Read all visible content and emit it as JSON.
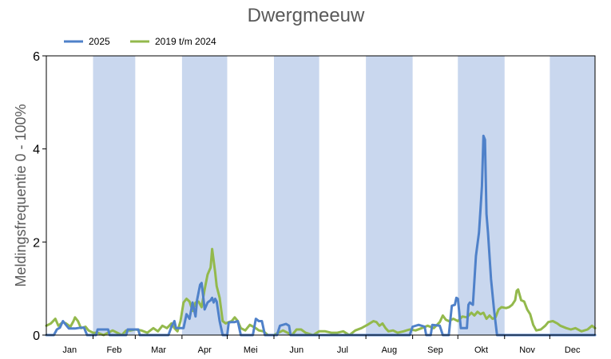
{
  "chart_data": {
    "type": "line",
    "title": "Dwergmeeuw",
    "ylabel": "Meldingsfrequentie 0 - 100%",
    "xlabel": "",
    "ylim": [
      0,
      6
    ],
    "yticks": [
      0,
      2,
      4,
      6
    ],
    "xlim": [
      1,
      365
    ],
    "months": [
      "Jan",
      "Feb",
      "Mar",
      "Apr",
      "Mei",
      "Jun",
      "Jul",
      "Aug",
      "Sep",
      "Okt",
      "Nov",
      "Dec"
    ],
    "month_shading": "alternating months shaded light blue, starting Feb",
    "legend_position": "top-left",
    "grid": false,
    "colors": {
      "band": "#c9d7ee",
      "series_2025": "#4f81c9",
      "series_2019_2024": "#93b94c"
    },
    "series": [
      {
        "name": "2025",
        "color": "#4f81c9",
        "points": [
          [
            1,
            0.0
          ],
          [
            6,
            0.0
          ],
          [
            8,
            0.12
          ],
          [
            10,
            0.16
          ],
          [
            12,
            0.3
          ],
          [
            14,
            0.22
          ],
          [
            16,
            0.14
          ],
          [
            20,
            0.14
          ],
          [
            24,
            0.16
          ],
          [
            26,
            0.16
          ],
          [
            28,
            0.0
          ],
          [
            34,
            0.0
          ],
          [
            35,
            0.12
          ],
          [
            42,
            0.12
          ],
          [
            43,
            0.0
          ],
          [
            54,
            0.0
          ],
          [
            55,
            0.12
          ],
          [
            62,
            0.12
          ],
          [
            63,
            0.0
          ],
          [
            82,
            0.0
          ],
          [
            84,
            0.18
          ],
          [
            86,
            0.3
          ],
          [
            87,
            0.15
          ],
          [
            92,
            0.15
          ],
          [
            94,
            0.45
          ],
          [
            96,
            0.35
          ],
          [
            98,
            0.7
          ],
          [
            100,
            0.4
          ],
          [
            101,
            0.75
          ],
          [
            103,
            1.08
          ],
          [
            104,
            1.12
          ],
          [
            105,
            0.85
          ],
          [
            106,
            0.55
          ],
          [
            108,
            0.7
          ],
          [
            110,
            0.75
          ],
          [
            111,
            0.8
          ],
          [
            112,
            0.7
          ],
          [
            113,
            0.78
          ],
          [
            114,
            0.72
          ],
          [
            116,
            0.3
          ],
          [
            118,
            0.0
          ],
          [
            121,
            0.0
          ],
          [
            122,
            0.27
          ],
          [
            124,
            0.28
          ],
          [
            126,
            0.28
          ],
          [
            128,
            0.3
          ],
          [
            130,
            0.0
          ],
          [
            138,
            0.0
          ],
          [
            140,
            0.35
          ],
          [
            142,
            0.3
          ],
          [
            144,
            0.3
          ],
          [
            146,
            0.0
          ],
          [
            154,
            0.0
          ],
          [
            156,
            0.2
          ],
          [
            160,
            0.24
          ],
          [
            162,
            0.2
          ],
          [
            163,
            0.0
          ],
          [
            242,
            0.0
          ],
          [
            244,
            0.18
          ],
          [
            248,
            0.22
          ],
          [
            252,
            0.18
          ],
          [
            253,
            0.0
          ],
          [
            256,
            0.0
          ],
          [
            257,
            0.22
          ],
          [
            262,
            0.2
          ],
          [
            264,
            0.0
          ],
          [
            268,
            0.0
          ],
          [
            270,
            0.63
          ],
          [
            272,
            0.65
          ],
          [
            273,
            0.8
          ],
          [
            274,
            0.78
          ],
          [
            276,
            0.15
          ],
          [
            280,
            0.15
          ],
          [
            281,
            0.65
          ],
          [
            282,
            0.7
          ],
          [
            284,
            0.65
          ],
          [
            286,
            1.7
          ],
          [
            288,
            2.2
          ],
          [
            289,
            2.7
          ],
          [
            290,
            3.2
          ],
          [
            291,
            4.28
          ],
          [
            292,
            4.2
          ],
          [
            293,
            2.6
          ],
          [
            294,
            2.2
          ],
          [
            296,
            1.2
          ],
          [
            298,
            0.55
          ],
          [
            300,
            0.0
          ],
          [
            365,
            0.0
          ]
        ]
      },
      {
        "name": "2019 t/m 2024",
        "color": "#93b94c",
        "points": [
          [
            1,
            0.2
          ],
          [
            4,
            0.25
          ],
          [
            7,
            0.35
          ],
          [
            9,
            0.2
          ],
          [
            12,
            0.28
          ],
          [
            14,
            0.25
          ],
          [
            17,
            0.18
          ],
          [
            19,
            0.3
          ],
          [
            20,
            0.38
          ],
          [
            22,
            0.3
          ],
          [
            24,
            0.15
          ],
          [
            27,
            0.18
          ],
          [
            29,
            0.1
          ],
          [
            32,
            0.05
          ],
          [
            35,
            0.05
          ],
          [
            39,
            0.0
          ],
          [
            42,
            0.05
          ],
          [
            45,
            0.1
          ],
          [
            48,
            0.05
          ],
          [
            51,
            0.0
          ],
          [
            54,
            0.1
          ],
          [
            57,
            0.1
          ],
          [
            60,
            0.12
          ],
          [
            64,
            0.1
          ],
          [
            68,
            0.05
          ],
          [
            72,
            0.15
          ],
          [
            75,
            0.08
          ],
          [
            78,
            0.2
          ],
          [
            81,
            0.15
          ],
          [
            84,
            0.25
          ],
          [
            86,
            0.15
          ],
          [
            88,
            0.08
          ],
          [
            90,
            0.3
          ],
          [
            92,
            0.7
          ],
          [
            94,
            0.78
          ],
          [
            96,
            0.72
          ],
          [
            98,
            0.52
          ],
          [
            100,
            0.7
          ],
          [
            102,
            0.72
          ],
          [
            104,
            0.6
          ],
          [
            106,
            0.98
          ],
          [
            108,
            1.3
          ],
          [
            110,
            1.45
          ],
          [
            111,
            1.85
          ],
          [
            112,
            1.6
          ],
          [
            113,
            1.35
          ],
          [
            114,
            1.05
          ],
          [
            116,
            0.8
          ],
          [
            118,
            0.3
          ],
          [
            120,
            0.25
          ],
          [
            122,
            0.28
          ],
          [
            124,
            0.3
          ],
          [
            126,
            0.38
          ],
          [
            128,
            0.3
          ],
          [
            130,
            0.15
          ],
          [
            133,
            0.1
          ],
          [
            136,
            0.22
          ],
          [
            140,
            0.15
          ],
          [
            142,
            0.1
          ],
          [
            145,
            0.08
          ],
          [
            148,
            0.0
          ],
          [
            152,
            0.0
          ],
          [
            155,
            0.05
          ],
          [
            158,
            0.1
          ],
          [
            161,
            0.05
          ],
          [
            164,
            0.0
          ],
          [
            167,
            0.12
          ],
          [
            170,
            0.12
          ],
          [
            173,
            0.05
          ],
          [
            178,
            0.0
          ],
          [
            182,
            0.08
          ],
          [
            186,
            0.08
          ],
          [
            190,
            0.05
          ],
          [
            194,
            0.05
          ],
          [
            198,
            0.08
          ],
          [
            202,
            0.0
          ],
          [
            206,
            0.1
          ],
          [
            210,
            0.15
          ],
          [
            214,
            0.22
          ],
          [
            218,
            0.3
          ],
          [
            220,
            0.28
          ],
          [
            222,
            0.2
          ],
          [
            224,
            0.25
          ],
          [
            226,
            0.15
          ],
          [
            228,
            0.08
          ],
          [
            231,
            0.1
          ],
          [
            234,
            0.05
          ],
          [
            238,
            0.08
          ],
          [
            242,
            0.12
          ],
          [
            246,
            0.1
          ],
          [
            250,
            0.15
          ],
          [
            254,
            0.2
          ],
          [
            258,
            0.15
          ],
          [
            262,
            0.28
          ],
          [
            264,
            0.42
          ],
          [
            266,
            0.33
          ],
          [
            268,
            0.3
          ],
          [
            271,
            0.35
          ],
          [
            274,
            0.3
          ],
          [
            277,
            0.4
          ],
          [
            280,
            0.38
          ],
          [
            283,
            0.48
          ],
          [
            285,
            0.42
          ],
          [
            287,
            0.5
          ],
          [
            289,
            0.45
          ],
          [
            291,
            0.48
          ],
          [
            293,
            0.35
          ],
          [
            295,
            0.42
          ],
          [
            297,
            0.35
          ],
          [
            299,
            0.38
          ],
          [
            301,
            0.55
          ],
          [
            303,
            0.6
          ],
          [
            306,
            0.58
          ],
          [
            308,
            0.6
          ],
          [
            310,
            0.65
          ],
          [
            312,
            0.75
          ],
          [
            313,
            0.95
          ],
          [
            314,
            0.98
          ],
          [
            316,
            0.75
          ],
          [
            318,
            0.72
          ],
          [
            320,
            0.55
          ],
          [
            322,
            0.45
          ],
          [
            324,
            0.22
          ],
          [
            326,
            0.1
          ],
          [
            329,
            0.12
          ],
          [
            332,
            0.2
          ],
          [
            334,
            0.28
          ],
          [
            337,
            0.3
          ],
          [
            340,
            0.25
          ],
          [
            342,
            0.2
          ],
          [
            346,
            0.15
          ],
          [
            349,
            0.12
          ],
          [
            352,
            0.15
          ],
          [
            356,
            0.08
          ],
          [
            360,
            0.12
          ],
          [
            363,
            0.2
          ],
          [
            365,
            0.15
          ]
        ]
      }
    ]
  }
}
